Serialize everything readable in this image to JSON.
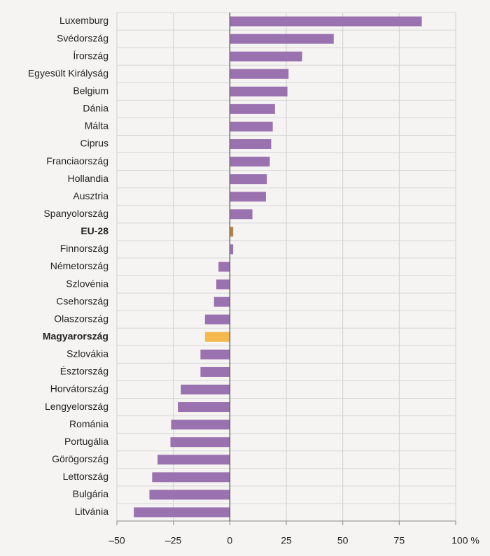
{
  "chart_data": {
    "type": "barh",
    "categories": [
      "Luxemburg",
      "Svédország",
      "Írország",
      "Egyesült Királyság",
      "Belgium",
      "Dánia",
      "Málta",
      "Ciprus",
      "Franciaország",
      "Hollandia",
      "Ausztria",
      "Spanyolország",
      "EU-28",
      "Finnország",
      "Németország",
      "Szlovénia",
      "Csehország",
      "Olaszország",
      "Magyarország",
      "Szlovákia",
      "Észtország",
      "Horvátország",
      "Lengyelország",
      "Románia",
      "Portugália",
      "Görögország",
      "Lettország",
      "Bulgária",
      "Litvánia"
    ],
    "values": [
      85,
      46,
      32,
      26,
      25.5,
      20,
      19,
      18.3,
      17.7,
      16.4,
      16,
      10,
      1.5,
      1.5,
      -5,
      -6,
      -7,
      -11,
      -11,
      -13,
      -13,
      -21.7,
      -23,
      -26,
      -26.3,
      -32,
      -34.4,
      -35.6,
      -42.5
    ],
    "colors": [
      "#9b72b0",
      "#9b72b0",
      "#9b72b0",
      "#9b72b0",
      "#9b72b0",
      "#9b72b0",
      "#9b72b0",
      "#9b72b0",
      "#9b72b0",
      "#9b72b0",
      "#9b72b0",
      "#9b72b0",
      "#b8834a",
      "#9b72b0",
      "#9b72b0",
      "#9b72b0",
      "#9b72b0",
      "#9b72b0",
      "#f5b94e",
      "#9b72b0",
      "#9b72b0",
      "#9b72b0",
      "#9b72b0",
      "#9b72b0",
      "#9b72b0",
      "#9b72b0",
      "#9b72b0",
      "#9b72b0",
      "#9b72b0"
    ],
    "bold": [
      false,
      false,
      false,
      false,
      false,
      false,
      false,
      false,
      false,
      false,
      false,
      false,
      true,
      false,
      false,
      false,
      false,
      false,
      true,
      false,
      false,
      false,
      false,
      false,
      false,
      false,
      false,
      false,
      false
    ],
    "xlim": [
      -50,
      100
    ],
    "xticks": [
      {
        "value": -50,
        "label": "–50"
      },
      {
        "value": -25,
        "label": "–25"
      },
      0,
      25,
      50,
      75,
      {
        "value": 100,
        "label": "100 %"
      }
    ],
    "grid": true
  }
}
